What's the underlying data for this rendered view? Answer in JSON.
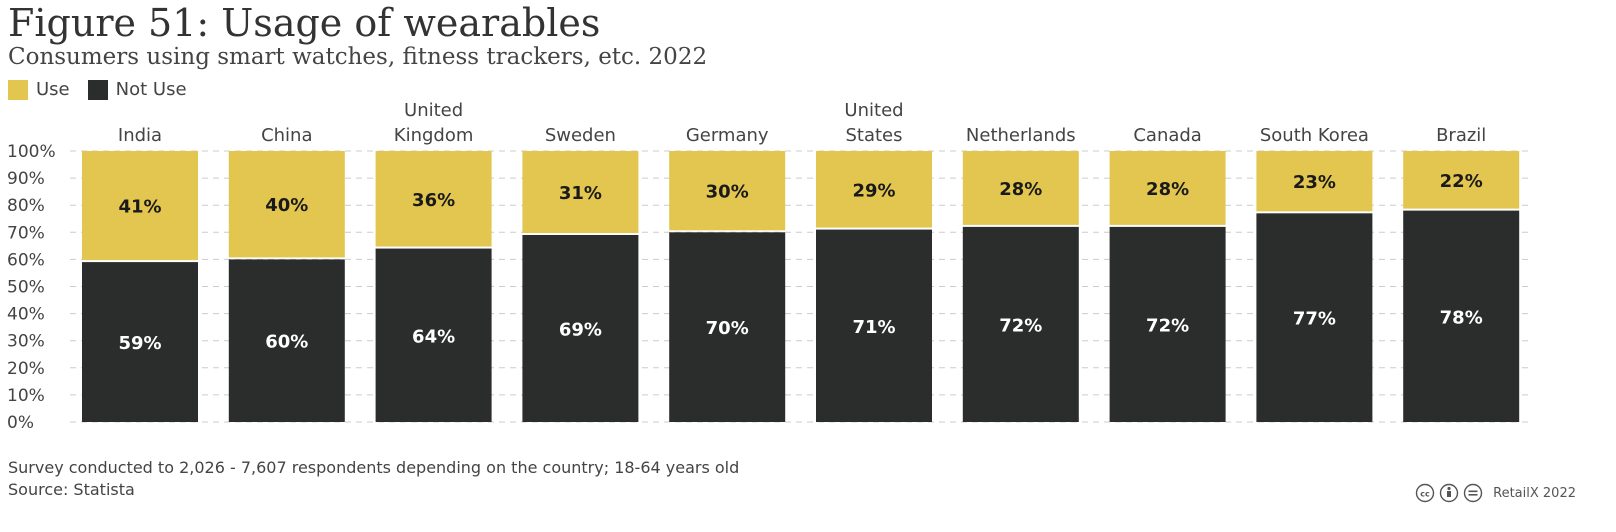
{
  "title": "Figure 51: Usage of wearables",
  "subtitle": "Consumers using smart watches, fitness trackers, etc. 2022",
  "legend": {
    "use_label": "Use",
    "not_use_label": "Not Use"
  },
  "colors": {
    "use": "#e3c64f",
    "not_use": "#2b2d2c",
    "grid": "#cccccc",
    "label_dark": "#1a1a1a",
    "label_light": "#ffffff"
  },
  "footnote": "Survey conducted to 2,026 - 7,607 respondents depending on the country; 18-64 years old",
  "source": "Source: Statista",
  "credit": {
    "icons": [
      "cc-icon",
      "by-icon",
      "nd-icon"
    ],
    "text": "RetailX 2022"
  },
  "chart_data": {
    "type": "bar",
    "stacked": true,
    "categories": [
      "India",
      "China",
      "United Kingdom",
      "Sweden",
      "Germany",
      "United States",
      "Netherlands",
      "Canada",
      "South Korea",
      "Brazil"
    ],
    "category_label_lines": [
      [
        "India"
      ],
      [
        "China"
      ],
      [
        "United",
        "Kingdom"
      ],
      [
        "Sweden"
      ],
      [
        "Germany"
      ],
      [
        "United",
        "States"
      ],
      [
        "Netherlands"
      ],
      [
        "Canada"
      ],
      [
        "South Korea"
      ],
      [
        "Brazil"
      ]
    ],
    "series": [
      {
        "name": "Not Use",
        "values": [
          59,
          60,
          64,
          69,
          70,
          71,
          72,
          72,
          77,
          78
        ],
        "labels": [
          "59%",
          "60%",
          "64%",
          "69%",
          "70%",
          "71%",
          "72%",
          "72%",
          "77%",
          "78%"
        ]
      },
      {
        "name": "Use",
        "values": [
          41,
          40,
          36,
          31,
          30,
          29,
          28,
          28,
          23,
          22
        ],
        "labels": [
          "41%",
          "40%",
          "36%",
          "31%",
          "30%",
          "29%",
          "28%",
          "28%",
          "23%",
          "22%"
        ]
      }
    ],
    "yticks": [
      "0%",
      "10%",
      "20%",
      "30%",
      "40%",
      "50%",
      "60%",
      "70%",
      "80%",
      "90%",
      "100%"
    ],
    "ylim": [
      0,
      100
    ],
    "grid": true,
    "legend_position": "top-left"
  }
}
